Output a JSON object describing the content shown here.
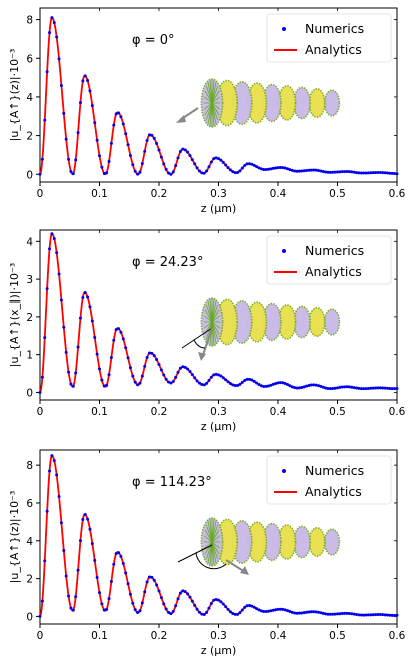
{
  "chart_data": [
    {
      "type": "line",
      "annotation": "φ = 0°",
      "xlabel": "z (μm)",
      "ylabel": "|u_{A↑}(z)|·10⁻³",
      "xlim": [
        0,
        0.6
      ],
      "ylim": [
        -0.4,
        8.6
      ],
      "xticks": [
        "0",
        "0.1",
        "0.2",
        "0.3",
        "0.4",
        "0.5",
        "0.6"
      ],
      "yticks": [
        "0",
        "2",
        "4",
        "6",
        "8"
      ],
      "legend": [
        "Numerics",
        "Analytics"
      ],
      "legend_position": "top-right",
      "series": [
        {
          "name": "Numerics",
          "style": "dots",
          "color": "#0000ee"
        },
        {
          "name": "Analytics",
          "style": "line",
          "color": "#ff0000"
        }
      ],
      "peaks": [
        {
          "x": 0.02,
          "y": 8.1
        },
        {
          "x": 0.075,
          "y": 5.1
        },
        {
          "x": 0.13,
          "y": 3.2
        },
        {
          "x": 0.185,
          "y": 2.05
        },
        {
          "x": 0.24,
          "y": 1.3
        },
        {
          "x": 0.295,
          "y": 0.85
        },
        {
          "x": 0.35,
          "y": 0.55
        },
        {
          "x": 0.405,
          "y": 0.35
        },
        {
          "x": 0.46,
          "y": 0.22
        },
        {
          "x": 0.515,
          "y": 0.14
        },
        {
          "x": 0.57,
          "y": 0.09
        }
      ],
      "troughs": [
        {
          "x": 0.055,
          "y": 0.0
        },
        {
          "x": 0.11,
          "y": 0.0
        },
        {
          "x": 0.165,
          "y": 0.0
        },
        {
          "x": 0.22,
          "y": 0.0
        },
        {
          "x": 0.275,
          "y": 0.05
        },
        {
          "x": 0.33,
          "y": 0.08
        }
      ],
      "tail": 0.0
    },
    {
      "type": "line",
      "annotation": "φ = 24.23°",
      "xlabel": "z (μm)",
      "ylabel": "|u_{A↑}(x_∥)|·10⁻³",
      "xlim": [
        0,
        0.6
      ],
      "ylim": [
        -0.2,
        4.3
      ],
      "xticks": [
        "0",
        "0.1",
        "0.2",
        "0.3",
        "0.4",
        "0.5",
        "0.6"
      ],
      "yticks": [
        "0",
        "1",
        "2",
        "3",
        "4"
      ],
      "legend": [
        "Numerics",
        "Analytics"
      ],
      "legend_position": "top-right",
      "series": [
        {
          "name": "Numerics",
          "style": "dots",
          "color": "#0000ee"
        },
        {
          "name": "Analytics",
          "style": "line",
          "color": "#ff0000"
        }
      ],
      "peaks": [
        {
          "x": 0.02,
          "y": 4.2
        },
        {
          "x": 0.075,
          "y": 2.65
        },
        {
          "x": 0.13,
          "y": 1.7
        },
        {
          "x": 0.185,
          "y": 1.05
        },
        {
          "x": 0.24,
          "y": 0.68
        },
        {
          "x": 0.295,
          "y": 0.48
        },
        {
          "x": 0.35,
          "y": 0.35
        },
        {
          "x": 0.405,
          "y": 0.26
        },
        {
          "x": 0.46,
          "y": 0.2
        },
        {
          "x": 0.515,
          "y": 0.15
        },
        {
          "x": 0.57,
          "y": 0.12
        }
      ],
      "troughs": [
        {
          "x": 0.055,
          "y": 0.15
        },
        {
          "x": 0.11,
          "y": 0.15
        },
        {
          "x": 0.165,
          "y": 0.2
        },
        {
          "x": 0.22,
          "y": 0.25
        },
        {
          "x": 0.275,
          "y": 0.2
        },
        {
          "x": 0.33,
          "y": 0.18
        }
      ],
      "tail": 0.1
    },
    {
      "type": "line",
      "annotation": "φ = 114.23°",
      "xlabel": "z (μm)",
      "ylabel": "|u_{A↑}(z)|·10⁻³",
      "xlim": [
        0,
        0.6
      ],
      "ylim": [
        -0.4,
        8.8
      ],
      "xticks": [
        "0",
        "0.1",
        "0.2",
        "0.3",
        "0.4",
        "0.5",
        "0.6"
      ],
      "yticks": [
        "0",
        "2",
        "4",
        "6",
        "8"
      ],
      "legend": [
        "Numerics",
        "Analytics"
      ],
      "legend_position": "top-right",
      "series": [
        {
          "name": "Numerics",
          "style": "dots",
          "color": "#0000ee"
        },
        {
          "name": "Analytics",
          "style": "line",
          "color": "#ff0000"
        }
      ],
      "peaks": [
        {
          "x": 0.02,
          "y": 8.5
        },
        {
          "x": 0.075,
          "y": 5.4
        },
        {
          "x": 0.13,
          "y": 3.4
        },
        {
          "x": 0.185,
          "y": 2.1
        },
        {
          "x": 0.24,
          "y": 1.35
        },
        {
          "x": 0.295,
          "y": 0.9
        },
        {
          "x": 0.35,
          "y": 0.58
        },
        {
          "x": 0.405,
          "y": 0.38
        },
        {
          "x": 0.46,
          "y": 0.25
        },
        {
          "x": 0.515,
          "y": 0.16
        },
        {
          "x": 0.57,
          "y": 0.1
        }
      ],
      "troughs": [
        {
          "x": 0.055,
          "y": 0.3
        },
        {
          "x": 0.11,
          "y": 0.3
        },
        {
          "x": 0.165,
          "y": 0.2
        },
        {
          "x": 0.22,
          "y": 0.15
        },
        {
          "x": 0.275,
          "y": 0.1
        },
        {
          "x": 0.33,
          "y": 0.1
        }
      ],
      "tail": 0.05
    }
  ]
}
